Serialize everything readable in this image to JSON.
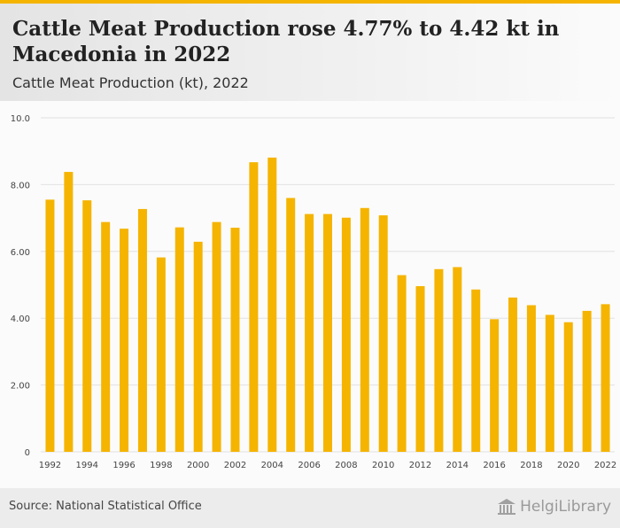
{
  "header": {
    "title": "Cattle Meat Production rose 4.77% to 4.42 kt in Macedonia in 2022",
    "subtitle": "Cattle Meat Production (kt), 2022"
  },
  "footer": {
    "source": "Source: National Statistical Office",
    "logo_text": "HelgiLibrary"
  },
  "colors": {
    "accent": "#f5b400",
    "bar": "#f5b400",
    "grid": "#e2e2e2",
    "text": "#444444"
  },
  "chart_data": {
    "type": "bar",
    "title": "Cattle Meat Production (kt), 2022",
    "xlabel": "",
    "ylabel": "",
    "ylim": [
      0,
      10
    ],
    "yticks": [
      0,
      2,
      4,
      6,
      8,
      10
    ],
    "ytick_labels": [
      "0",
      "2.00",
      "4.00",
      "6.00",
      "8.00",
      "10.0"
    ],
    "grid": true,
    "categories": [
      "1992",
      "1993",
      "1994",
      "1995",
      "1996",
      "1997",
      "1998",
      "1999",
      "2000",
      "2001",
      "2002",
      "2003",
      "2004",
      "2005",
      "2006",
      "2007",
      "2008",
      "2009",
      "2010",
      "2011",
      "2012",
      "2013",
      "2014",
      "2015",
      "2016",
      "2017",
      "2018",
      "2019",
      "2020",
      "2021",
      "2022"
    ],
    "xtick_labels": [
      "1992",
      "",
      "1994",
      "",
      "1996",
      "",
      "1998",
      "",
      "2000",
      "",
      "2002",
      "",
      "2004",
      "",
      "2006",
      "",
      "2008",
      "",
      "2010",
      "",
      "2012",
      "",
      "2014",
      "",
      "2016",
      "",
      "2018",
      "",
      "2020",
      "",
      "2022"
    ],
    "values": [
      7.55,
      8.38,
      7.53,
      6.88,
      6.68,
      7.27,
      5.82,
      6.72,
      6.29,
      6.88,
      6.71,
      8.67,
      8.81,
      7.6,
      7.12,
      7.12,
      7.01,
      7.3,
      7.08,
      5.29,
      4.96,
      5.47,
      5.53,
      4.86,
      3.97,
      4.62,
      4.39,
      4.1,
      3.88,
      4.22,
      4.42
    ]
  }
}
